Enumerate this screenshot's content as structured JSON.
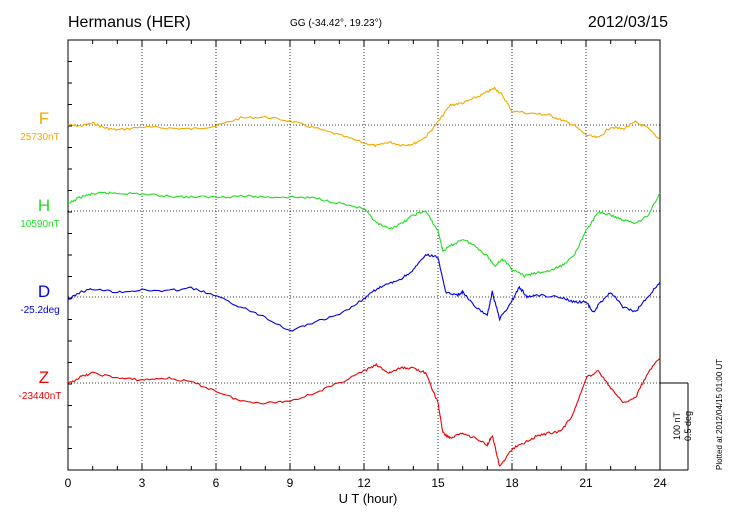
{
  "chart_data": {
    "type": "line",
    "title": "Hermanus (HER)",
    "subtitle": "GG (-34.42°,  19.23°)",
    "date": "2012/03/15",
    "xlabel": "U T (hour)",
    "xlim": [
      0,
      24
    ],
    "x_ticks": [
      "0",
      "3",
      "6",
      "9",
      "12",
      "15",
      "18",
      "21",
      "24"
    ],
    "scale": {
      "line1": "100 nT",
      "line2": "0.5 deg"
    },
    "plotted_note": "Plotted at 2012/04/15 01:00 UT",
    "grid": true,
    "series": [
      {
        "name": "F",
        "baseline_label": "25730nT",
        "color": "#f2a900",
        "points": [
          [
            0,
            0
          ],
          [
            0.5,
            1
          ],
          [
            1,
            -2
          ],
          [
            1.5,
            3
          ],
          [
            2,
            5
          ],
          [
            3,
            2
          ],
          [
            4,
            3
          ],
          [
            5,
            4
          ],
          [
            6,
            1
          ],
          [
            7,
            -7
          ],
          [
            8,
            -8
          ],
          [
            9,
            -4
          ],
          [
            10,
            3
          ],
          [
            11,
            10
          ],
          [
            12,
            18
          ],
          [
            12.5,
            21
          ],
          [
            13,
            17
          ],
          [
            13.5,
            20
          ],
          [
            14,
            19
          ],
          [
            14.5,
            12
          ],
          [
            15,
            -3
          ],
          [
            15.5,
            -20
          ],
          [
            16,
            -22
          ],
          [
            16.5,
            -27
          ],
          [
            17,
            -33
          ],
          [
            17.3,
            -37
          ],
          [
            17.6,
            -30
          ],
          [
            18,
            -14
          ],
          [
            19,
            -11
          ],
          [
            19.5,
            -10
          ],
          [
            20,
            -5
          ],
          [
            20.5,
            0
          ],
          [
            21,
            10
          ],
          [
            21.5,
            13
          ],
          [
            22,
            2
          ],
          [
            22.5,
            4
          ],
          [
            23,
            -3
          ],
          [
            23.5,
            3
          ],
          [
            24,
            15
          ]
        ]
      },
      {
        "name": "H",
        "baseline_label": "10590nT",
        "color": "#22dd22",
        "points": [
          [
            0,
            -7
          ],
          [
            0.5,
            -14
          ],
          [
            1,
            -17
          ],
          [
            1.5,
            -18
          ],
          [
            2,
            -18
          ],
          [
            3,
            -17
          ],
          [
            4,
            -15
          ],
          [
            5,
            -14
          ],
          [
            6,
            -14
          ],
          [
            7,
            -15
          ],
          [
            8,
            -14
          ],
          [
            9,
            -14
          ],
          [
            10,
            -13
          ],
          [
            11,
            -8
          ],
          [
            12,
            -2
          ],
          [
            12.5,
            12
          ],
          [
            13,
            18
          ],
          [
            13.5,
            13
          ],
          [
            14,
            4
          ],
          [
            14.5,
            0
          ],
          [
            15,
            20
          ],
          [
            15.2,
            40
          ],
          [
            15.5,
            35
          ],
          [
            16,
            28
          ],
          [
            16.5,
            35
          ],
          [
            17,
            45
          ],
          [
            17.3,
            55
          ],
          [
            17.6,
            48
          ],
          [
            18,
            58
          ],
          [
            18.5,
            65
          ],
          [
            19,
            62
          ],
          [
            19.5,
            60
          ],
          [
            20,
            55
          ],
          [
            20.5,
            45
          ],
          [
            21,
            20
          ],
          [
            21.5,
            1
          ],
          [
            22,
            4
          ],
          [
            22.5,
            9
          ],
          [
            23,
            12
          ],
          [
            23.5,
            5
          ],
          [
            24,
            -18
          ]
        ]
      },
      {
        "name": "D",
        "baseline_label": "-25.2deg",
        "color": "#0000ee",
        "points": [
          [
            0,
            3
          ],
          [
            0.5,
            -5
          ],
          [
            1,
            -8
          ],
          [
            2,
            -5
          ],
          [
            3,
            -7
          ],
          [
            4,
            -6
          ],
          [
            5,
            -9
          ],
          [
            6,
            -1
          ],
          [
            7,
            10
          ],
          [
            8,
            20
          ],
          [
            9,
            34
          ],
          [
            10,
            25
          ],
          [
            11,
            18
          ],
          [
            12,
            2
          ],
          [
            12.5,
            -8
          ],
          [
            13,
            -13
          ],
          [
            13.5,
            -18
          ],
          [
            14,
            -27
          ],
          [
            14.5,
            -42
          ],
          [
            15,
            -40
          ],
          [
            15.3,
            -5
          ],
          [
            15.8,
            -2
          ],
          [
            16,
            -5
          ],
          [
            16.5,
            10
          ],
          [
            17,
            18
          ],
          [
            17.2,
            -5
          ],
          [
            17.5,
            22
          ],
          [
            18,
            4
          ],
          [
            18.3,
            -10
          ],
          [
            18.6,
            0
          ],
          [
            19,
            -2
          ],
          [
            20,
            0
          ],
          [
            20.5,
            5
          ],
          [
            21,
            5
          ],
          [
            21.3,
            15
          ],
          [
            21.6,
            5
          ],
          [
            22,
            -5
          ],
          [
            22.5,
            10
          ],
          [
            23,
            15
          ],
          [
            23.5,
            0
          ],
          [
            24,
            -15
          ]
        ]
      },
      {
        "name": "Z",
        "baseline_label": "-23440nT",
        "color": "#ee0000",
        "points": [
          [
            0,
            1
          ],
          [
            0.5,
            -6
          ],
          [
            1,
            -10
          ],
          [
            2,
            -5
          ],
          [
            3,
            -3
          ],
          [
            4,
            -5
          ],
          [
            5,
            -1
          ],
          [
            6,
            8
          ],
          [
            7,
            18
          ],
          [
            8,
            20
          ],
          [
            9,
            18
          ],
          [
            10,
            10
          ],
          [
            11,
            0
          ],
          [
            12,
            -12
          ],
          [
            12.5,
            -18
          ],
          [
            13,
            -10
          ],
          [
            13.5,
            -15
          ],
          [
            14,
            -15
          ],
          [
            14.5,
            -10
          ],
          [
            15,
            20
          ],
          [
            15.2,
            50
          ],
          [
            15.5,
            55
          ],
          [
            16,
            50
          ],
          [
            16.5,
            55
          ],
          [
            17,
            62
          ],
          [
            17.2,
            52
          ],
          [
            17.5,
            84
          ],
          [
            18,
            66
          ],
          [
            18.5,
            60
          ],
          [
            19,
            53
          ],
          [
            19.5,
            50
          ],
          [
            20,
            48
          ],
          [
            20.5,
            30
          ],
          [
            21,
            -5
          ],
          [
            21.5,
            -12
          ],
          [
            22,
            5
          ],
          [
            22.5,
            20
          ],
          [
            23,
            15
          ],
          [
            23.5,
            -10
          ],
          [
            24,
            -25
          ]
        ]
      }
    ]
  }
}
